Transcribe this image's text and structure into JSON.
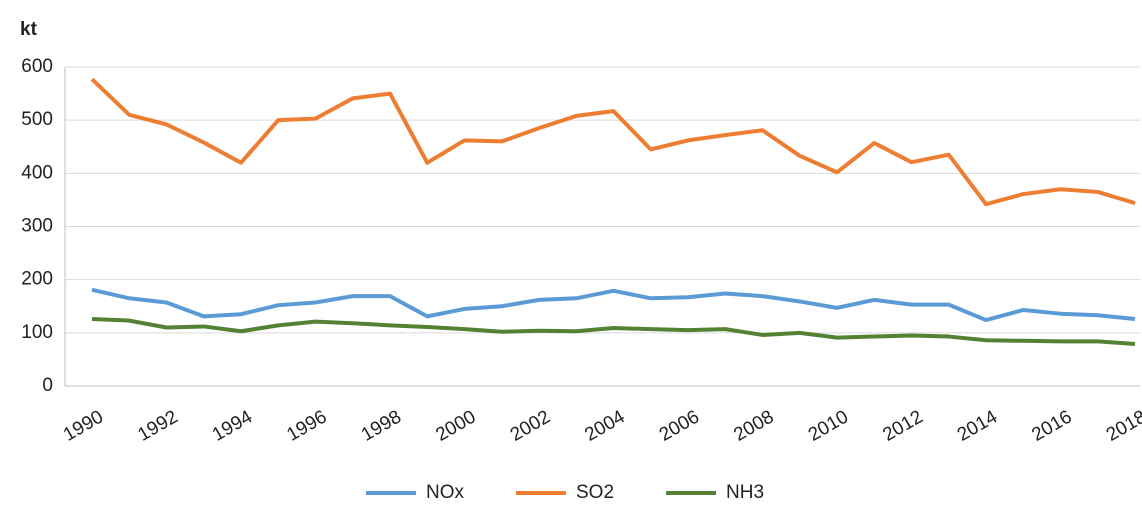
{
  "chart_data": {
    "type": "line",
    "y_label": "kt",
    "categories": [
      "1990",
      null,
      "1992",
      null,
      "1994",
      null,
      "1996",
      null,
      "1998",
      null,
      "2000",
      null,
      "2002",
      null,
      "2004",
      null,
      "2006",
      null,
      "2008",
      null,
      "2010",
      null,
      "2012",
      null,
      "2014",
      null,
      "2016",
      null,
      "2018"
    ],
    "series": [
      {
        "name": "NOx",
        "color": "#5b9bd5",
        "values": [
          181,
          165,
          157,
          131,
          135,
          152,
          157,
          169,
          169,
          131,
          145,
          150,
          162,
          165,
          179,
          165,
          167,
          174,
          169,
          159,
          147,
          162,
          153,
          153,
          124,
          143,
          136,
          133,
          126
        ]
      },
      {
        "name": "SO2",
        "color": "#ed7d31",
        "values": [
          577,
          510,
          492,
          458,
          420,
          500,
          503,
          541,
          550,
          420,
          462,
          460,
          485,
          508,
          517,
          445,
          462,
          472,
          481,
          433,
          402,
          457,
          421,
          435,
          342,
          361,
          370,
          365,
          344
        ]
      },
      {
        "name": "NH3",
        "color": "#548235",
        "values": [
          126,
          123,
          110,
          112,
          103,
          114,
          121,
          118,
          114,
          111,
          107,
          102,
          104,
          103,
          109,
          107,
          105,
          107,
          96,
          100,
          91,
          93,
          95,
          93,
          86,
          85,
          84,
          84,
          79
        ]
      }
    ],
    "ylim": [
      0,
      600
    ],
    "yticks": [
      0,
      100,
      200,
      300,
      400,
      500,
      600
    ],
    "grid": true,
    "legend": "bottom"
  }
}
